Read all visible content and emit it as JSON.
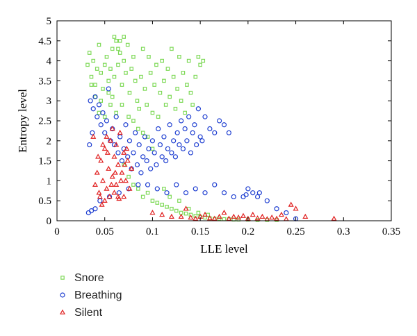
{
  "chart_data": {
    "type": "scatter",
    "title": "",
    "xlabel": "LLE level",
    "ylabel": "Entropy level",
    "xlim": [
      0,
      0.35
    ],
    "ylim": [
      0,
      5
    ],
    "xticks": [
      0,
      0.05,
      0.1,
      0.15,
      0.2,
      0.25,
      0.3,
      0.35
    ],
    "xtick_labels": [
      "0",
      "0.05",
      "0.1",
      "0.15",
      "0.2",
      "0.25",
      "0.3",
      "0.35"
    ],
    "yticks": [
      0,
      0.5,
      1,
      1.5,
      2,
      2.5,
      3,
      3.5,
      4,
      4.5,
      5
    ],
    "ytick_labels": [
      "0",
      "0.5",
      "1",
      "1.5",
      "2",
      "2.5",
      "3",
      "3.5",
      "4",
      "4.5",
      "5"
    ],
    "grid": false,
    "legend_position": "below-left",
    "series": [
      {
        "name": "Snore",
        "marker": "square",
        "color": "#7ed957",
        "points": [
          [
            0.032,
            3.9
          ],
          [
            0.034,
            4.2
          ],
          [
            0.036,
            3.6
          ],
          [
            0.038,
            4.0
          ],
          [
            0.04,
            3.4
          ],
          [
            0.042,
            3.8
          ],
          [
            0.044,
            4.4
          ],
          [
            0.046,
            3.7
          ],
          [
            0.048,
            3.3
          ],
          [
            0.05,
            3.9
          ],
          [
            0.052,
            4.1
          ],
          [
            0.054,
            3.5
          ],
          [
            0.056,
            3.8
          ],
          [
            0.058,
            4.3
          ],
          [
            0.06,
            3.6
          ],
          [
            0.062,
            4.5
          ],
          [
            0.064,
            3.9
          ],
          [
            0.066,
            4.2
          ],
          [
            0.068,
            3.4
          ],
          [
            0.07,
            4.0
          ],
          [
            0.072,
            3.7
          ],
          [
            0.074,
            4.4
          ],
          [
            0.076,
            3.2
          ],
          [
            0.078,
            3.8
          ],
          [
            0.08,
            4.1
          ],
          [
            0.082,
            3.5
          ],
          [
            0.084,
            3.0
          ],
          [
            0.086,
            2.8
          ],
          [
            0.088,
            3.6
          ],
          [
            0.09,
            4.3
          ],
          [
            0.092,
            3.3
          ],
          [
            0.094,
            2.9
          ],
          [
            0.096,
            4.1
          ],
          [
            0.098,
            3.7
          ],
          [
            0.1,
            2.7
          ],
          [
            0.102,
            3.4
          ],
          [
            0.104,
            3.9
          ],
          [
            0.106,
            2.6
          ],
          [
            0.108,
            3.2
          ],
          [
            0.11,
            4.0
          ],
          [
            0.112,
            3.5
          ],
          [
            0.114,
            2.9
          ],
          [
            0.116,
            3.8
          ],
          [
            0.118,
            3.1
          ],
          [
            0.12,
            4.3
          ],
          [
            0.122,
            3.6
          ],
          [
            0.124,
            2.8
          ],
          [
            0.126,
            3.3
          ],
          [
            0.128,
            4.1
          ],
          [
            0.13,
            3.0
          ],
          [
            0.132,
            3.7
          ],
          [
            0.134,
            2.7
          ],
          [
            0.136,
            3.4
          ],
          [
            0.138,
            4.0
          ],
          [
            0.14,
            3.2
          ],
          [
            0.142,
            2.9
          ],
          [
            0.145,
            3.6
          ],
          [
            0.148,
            4.1
          ],
          [
            0.15,
            3.9
          ],
          [
            0.153,
            4.0
          ],
          [
            0.06,
            4.6
          ],
          [
            0.07,
            4.6
          ],
          [
            0.066,
            4.5
          ],
          [
            0.064,
            4.3
          ],
          [
            0.058,
            3.1
          ],
          [
            0.056,
            2.9
          ],
          [
            0.054,
            3.2
          ],
          [
            0.062,
            2.7
          ],
          [
            0.068,
            2.9
          ],
          [
            0.075,
            2.6
          ],
          [
            0.08,
            2.5
          ],
          [
            0.085,
            2.3
          ],
          [
            0.09,
            2.2
          ],
          [
            0.095,
            2.1
          ],
          [
            0.1,
            1.8
          ],
          [
            0.05,
            2.6
          ],
          [
            0.046,
            3.0
          ],
          [
            0.044,
            2.7
          ],
          [
            0.04,
            3.1
          ],
          [
            0.036,
            3.4
          ],
          [
            0.07,
            1.4
          ],
          [
            0.075,
            1.1
          ],
          [
            0.08,
            0.9
          ],
          [
            0.085,
            0.8
          ],
          [
            0.09,
            0.6
          ],
          [
            0.095,
            0.7
          ],
          [
            0.1,
            0.5
          ],
          [
            0.105,
            0.45
          ],
          [
            0.11,
            0.4
          ],
          [
            0.115,
            0.35
          ],
          [
            0.12,
            0.3
          ],
          [
            0.125,
            0.25
          ],
          [
            0.13,
            0.2
          ],
          [
            0.135,
            0.18
          ],
          [
            0.14,
            0.15
          ],
          [
            0.145,
            0.12
          ],
          [
            0.15,
            0.1
          ],
          [
            0.155,
            0.08
          ],
          [
            0.16,
            0.06
          ],
          [
            0.165,
            0.05
          ],
          [
            0.17,
            0.05
          ],
          [
            0.175,
            0.04
          ],
          [
            0.18,
            0.04
          ],
          [
            0.185,
            0.03
          ],
          [
            0.19,
            0.03
          ],
          [
            0.2,
            0.03
          ],
          [
            0.21,
            0.02
          ],
          [
            0.22,
            0.02
          ],
          [
            0.23,
            0.02
          ],
          [
            0.112,
            0.8
          ],
          [
            0.118,
            0.6
          ],
          [
            0.128,
            0.5
          ],
          [
            0.138,
            0.3
          ],
          [
            0.148,
            0.2
          ],
          [
            0.158,
            0.15
          ]
        ]
      },
      {
        "name": "Breathing",
        "marker": "circle",
        "color": "#1f3fd1",
        "points": [
          [
            0.035,
            3.0
          ],
          [
            0.038,
            2.8
          ],
          [
            0.04,
            3.1
          ],
          [
            0.042,
            2.6
          ],
          [
            0.044,
            2.9
          ],
          [
            0.046,
            2.4
          ],
          [
            0.048,
            2.7
          ],
          [
            0.05,
            2.2
          ],
          [
            0.052,
            2.5
          ],
          [
            0.054,
            3.3
          ],
          [
            0.056,
            2.0
          ],
          [
            0.058,
            2.3
          ],
          [
            0.06,
            1.9
          ],
          [
            0.062,
            2.6
          ],
          [
            0.064,
            1.7
          ],
          [
            0.066,
            2.1
          ],
          [
            0.068,
            1.5
          ],
          [
            0.07,
            1.8
          ],
          [
            0.072,
            2.4
          ],
          [
            0.074,
            1.6
          ],
          [
            0.076,
            2.0
          ],
          [
            0.078,
            1.3
          ],
          [
            0.08,
            1.7
          ],
          [
            0.082,
            2.2
          ],
          [
            0.084,
            1.4
          ],
          [
            0.086,
            1.9
          ],
          [
            0.088,
            1.2
          ],
          [
            0.09,
            1.6
          ],
          [
            0.092,
            2.1
          ],
          [
            0.094,
            1.5
          ],
          [
            0.096,
            1.8
          ],
          [
            0.098,
            1.3
          ],
          [
            0.1,
            2.0
          ],
          [
            0.102,
            1.7
          ],
          [
            0.104,
            1.4
          ],
          [
            0.106,
            2.3
          ],
          [
            0.108,
            1.9
          ],
          [
            0.11,
            1.6
          ],
          [
            0.112,
            2.1
          ],
          [
            0.114,
            1.5
          ],
          [
            0.116,
            1.8
          ],
          [
            0.118,
            2.4
          ],
          [
            0.12,
            1.7
          ],
          [
            0.122,
            2.0
          ],
          [
            0.124,
            1.6
          ],
          [
            0.126,
            2.2
          ],
          [
            0.128,
            1.9
          ],
          [
            0.13,
            2.5
          ],
          [
            0.132,
            1.8
          ],
          [
            0.134,
            2.3
          ],
          [
            0.136,
            2.0
          ],
          [
            0.138,
            2.6
          ],
          [
            0.14,
            1.7
          ],
          [
            0.142,
            2.2
          ],
          [
            0.144,
            2.4
          ],
          [
            0.146,
            1.9
          ],
          [
            0.148,
            2.8
          ],
          [
            0.15,
            2.1
          ],
          [
            0.152,
            2.0
          ],
          [
            0.155,
            2.6
          ],
          [
            0.16,
            2.3
          ],
          [
            0.165,
            2.2
          ],
          [
            0.17,
            2.5
          ],
          [
            0.175,
            2.4
          ],
          [
            0.18,
            2.2
          ],
          [
            0.033,
            0.2
          ],
          [
            0.036,
            0.25
          ],
          [
            0.04,
            0.3
          ],
          [
            0.034,
            1.9
          ],
          [
            0.037,
            2.2
          ],
          [
            0.045,
            0.5
          ],
          [
            0.055,
            0.6
          ],
          [
            0.065,
            0.7
          ],
          [
            0.075,
            0.8
          ],
          [
            0.085,
            0.9
          ],
          [
            0.095,
            0.9
          ],
          [
            0.105,
            0.8
          ],
          [
            0.115,
            0.7
          ],
          [
            0.125,
            0.9
          ],
          [
            0.135,
            0.7
          ],
          [
            0.145,
            0.8
          ],
          [
            0.155,
            0.7
          ],
          [
            0.165,
            0.9
          ],
          [
            0.175,
            0.7
          ],
          [
            0.185,
            0.6
          ],
          [
            0.195,
            0.6
          ],
          [
            0.2,
            0.8
          ],
          [
            0.205,
            0.7
          ],
          [
            0.21,
            0.6
          ],
          [
            0.22,
            0.5
          ],
          [
            0.23,
            0.3
          ],
          [
            0.24,
            0.2
          ],
          [
            0.25,
            0.05
          ],
          [
            0.212,
            0.7
          ],
          [
            0.198,
            0.65
          ]
        ]
      },
      {
        "name": "Silent",
        "marker": "triangle",
        "color": "#e02020",
        "points": [
          [
            0.04,
            0.9
          ],
          [
            0.042,
            1.2
          ],
          [
            0.044,
            0.7
          ],
          [
            0.046,
            1.5
          ],
          [
            0.048,
            1.0
          ],
          [
            0.05,
            1.8
          ],
          [
            0.052,
            0.8
          ],
          [
            0.054,
            1.3
          ],
          [
            0.056,
            2.0
          ],
          [
            0.058,
            1.1
          ],
          [
            0.06,
            1.6
          ],
          [
            0.062,
            0.9
          ],
          [
            0.064,
            1.4
          ],
          [
            0.066,
            2.2
          ],
          [
            0.068,
            1.2
          ],
          [
            0.07,
            1.7
          ],
          [
            0.072,
            1.0
          ],
          [
            0.074,
            1.5
          ],
          [
            0.076,
            0.8
          ],
          [
            0.078,
            1.3
          ],
          [
            0.045,
            0.6
          ],
          [
            0.05,
            0.5
          ],
          [
            0.055,
            0.6
          ],
          [
            0.06,
            0.7
          ],
          [
            0.065,
            0.55
          ],
          [
            0.07,
            0.6
          ],
          [
            0.048,
            1.9
          ],
          [
            0.052,
            2.1
          ],
          [
            0.058,
            2.3
          ],
          [
            0.062,
            1.9
          ],
          [
            0.038,
            2.1
          ],
          [
            0.043,
            1.6
          ],
          [
            0.047,
            0.4
          ],
          [
            0.053,
            1.7
          ],
          [
            0.057,
            0.9
          ],
          [
            0.061,
            1.2
          ],
          [
            0.067,
            1.0
          ],
          [
            0.071,
            1.4
          ],
          [
            0.073,
            1.8
          ],
          [
            0.064,
            0.6
          ],
          [
            0.1,
            0.2
          ],
          [
            0.11,
            0.15
          ],
          [
            0.12,
            0.1
          ],
          [
            0.13,
            0.1
          ],
          [
            0.14,
            0.08
          ],
          [
            0.15,
            0.1
          ],
          [
            0.16,
            0.06
          ],
          [
            0.17,
            0.1
          ],
          [
            0.18,
            0.05
          ],
          [
            0.19,
            0.08
          ],
          [
            0.2,
            0.05
          ],
          [
            0.21,
            0.06
          ],
          [
            0.22,
            0.04
          ],
          [
            0.23,
            0.05
          ],
          [
            0.24,
            0.04
          ],
          [
            0.25,
            0.3
          ],
          [
            0.26,
            0.1
          ],
          [
            0.29,
            0.05
          ],
          [
            0.135,
            0.3
          ],
          [
            0.155,
            0.15
          ],
          [
            0.175,
            0.2
          ],
          [
            0.195,
            0.12
          ],
          [
            0.215,
            0.1
          ],
          [
            0.235,
            0.15
          ],
          [
            0.245,
            0.4
          ],
          [
            0.165,
            0.05
          ],
          [
            0.185,
            0.1
          ],
          [
            0.205,
            0.15
          ],
          [
            0.225,
            0.08
          ],
          [
            0.145,
            0.05
          ]
        ]
      }
    ]
  }
}
